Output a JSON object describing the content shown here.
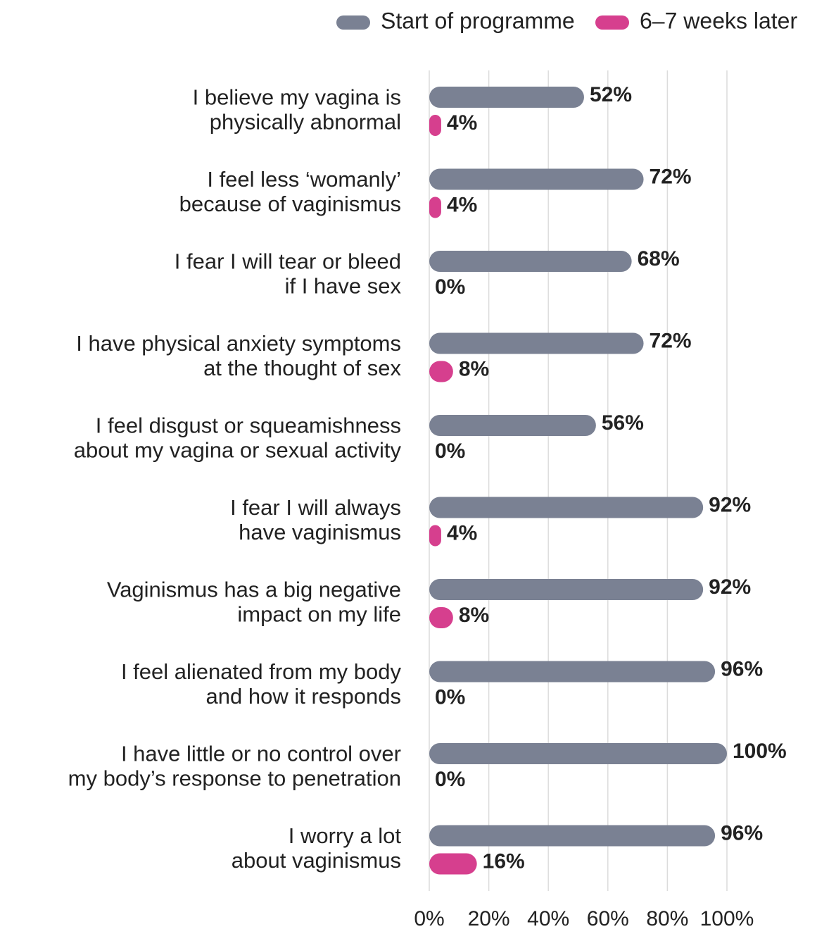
{
  "chart_data": {
    "type": "bar",
    "orientation": "horizontal",
    "categories": [
      [
        "I believe my vagina is",
        "physically abnormal"
      ],
      [
        "I feel less ‘womanly’",
        "because of vaginismus"
      ],
      [
        "I fear I will tear or bleed",
        "if I have sex"
      ],
      [
        "I have physical anxiety symptoms",
        "at the thought of sex"
      ],
      [
        "I feel disgust or squeamishness",
        "about my vagina or sexual activity"
      ],
      [
        "I fear I will always",
        "have vaginismus"
      ],
      [
        "Vaginismus has a big negative",
        "impact on my life"
      ],
      [
        "I feel alienated from my body",
        "and how it responds"
      ],
      [
        "I have little or no control over",
        "my body’s response to penetration"
      ],
      [
        "I worry a lot",
        "about vaginismus"
      ]
    ],
    "series": [
      {
        "name": "Start of programme",
        "color": "#7a8193",
        "values": [
          52,
          72,
          68,
          72,
          56,
          92,
          92,
          96,
          100,
          96
        ],
        "value_labels": [
          "52%",
          "72%",
          "68%",
          "72%",
          "56%",
          "92%",
          "92%",
          "96%",
          "100%",
          "96%"
        ]
      },
      {
        "name": "6–7 weeks later",
        "color": "#d63f8e",
        "values": [
          4,
          4,
          0,
          8,
          0,
          4,
          8,
          0,
          0,
          16
        ],
        "value_labels": [
          "4%",
          "4%",
          "0%",
          "8%",
          "0%",
          "4%",
          "8%",
          "0%",
          "0%",
          "16%"
        ]
      }
    ],
    "xlim": [
      0,
      100
    ],
    "xticks": [
      {
        "value": 0,
        "label": "0%"
      },
      {
        "value": 20,
        "label": "20%"
      },
      {
        "value": 40,
        "label": "40%"
      },
      {
        "value": 60,
        "label": "60%"
      },
      {
        "value": 80,
        "label": "80%"
      },
      {
        "value": 100,
        "label": "100%"
      }
    ],
    "grid": true,
    "legend": "top-right"
  }
}
